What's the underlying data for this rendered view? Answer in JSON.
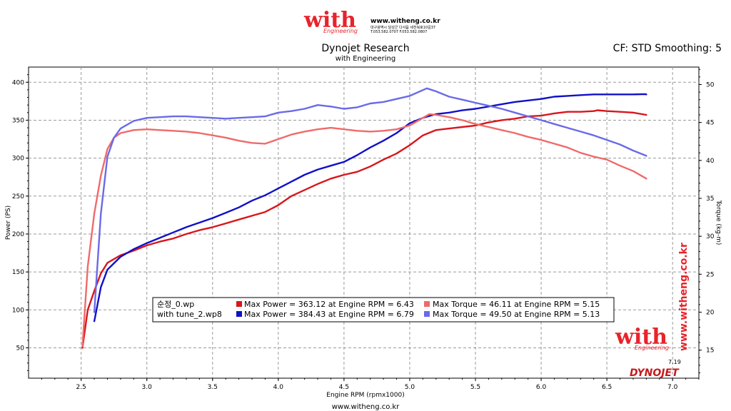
{
  "header": {
    "title": "Dynojet Research",
    "subtitle": "with Engineering",
    "cf_text": "CF: STD Smoothing: 5",
    "logo_word": "with",
    "logo_sub": "Engineering",
    "logo_url": "www.witheng.co.kr",
    "logo_addr": "대구광역시 달성군 다사읍 세천북로10길37",
    "logo_phone": "T.053.582.0707 F.053.582.0807"
  },
  "footer": {
    "url": "www.witheng.co.kr"
  },
  "watermark": {
    "vertical_url": "www.witheng.co.kr",
    "logo_word": "with",
    "logo_sub": "Engineering",
    "dyno_brand": "DYNOJET",
    "version": "7.19"
  },
  "colors": {
    "power_1": "#d8161b",
    "torque_1": "#f06a6a",
    "power_2": "#1010c8",
    "torque_2": "#6a6ae8",
    "plot_bg": "#ffffff",
    "grid": "#9a9a9a",
    "brand_red": "#e8232b"
  },
  "chart_data": {
    "type": "line",
    "title": "Dynojet Research",
    "subtitle": "with Engineering",
    "xlabel": "Engine RPM (rpmx1000)",
    "ylabel_left": "Power (PS)",
    "ylabel_right": "Torque (kg-m)",
    "xlim": [
      2.1,
      7.2
    ],
    "ylim_left": [
      10,
      420
    ],
    "ylim_right": [
      11.3,
      52.3
    ],
    "x_ticks": [
      "2.5",
      "3.0",
      "3.5",
      "4.0",
      "4.5",
      "5.0",
      "5.5",
      "6.0",
      "6.5",
      "7.0"
    ],
    "y_ticks_left": [
      "50",
      "100",
      "150",
      "200",
      "250",
      "300",
      "350",
      "400"
    ],
    "y_ticks_right": [
      "15",
      "20",
      "25",
      "30",
      "35",
      "40",
      "45",
      "50"
    ],
    "grid": true,
    "legend_position": "bottom-center",
    "legend": [
      {
        "file": "순정_0.wp",
        "power_text": "Max Power = 363.12 at Engine RPM = 6.43",
        "torque_text": "Max Torque = 46.11 at Engine RPM = 5.15"
      },
      {
        "file": "with tune_2.wp8",
        "power_text": "Max Power = 384.43 at Engine RPM = 6.79",
        "torque_text": "Max Torque = 49.50 at Engine RPM = 5.13"
      }
    ],
    "series": [
      {
        "name": "순정_0.wp Power",
        "axis": "left",
        "color": "#d8161b",
        "points": [
          [
            2.51,
            50
          ],
          [
            2.55,
            100
          ],
          [
            2.6,
            125
          ],
          [
            2.65,
            148
          ],
          [
            2.7,
            162
          ],
          [
            2.8,
            172
          ],
          [
            2.9,
            178
          ],
          [
            3.0,
            185
          ],
          [
            3.1,
            190
          ],
          [
            3.2,
            194
          ],
          [
            3.3,
            200
          ],
          [
            3.4,
            205
          ],
          [
            3.5,
            209
          ],
          [
            3.6,
            214
          ],
          [
            3.7,
            219
          ],
          [
            3.8,
            224
          ],
          [
            3.9,
            229
          ],
          [
            4.0,
            238
          ],
          [
            4.1,
            250
          ],
          [
            4.2,
            258
          ],
          [
            4.3,
            266
          ],
          [
            4.4,
            273
          ],
          [
            4.5,
            278
          ],
          [
            4.6,
            282
          ],
          [
            4.7,
            289
          ],
          [
            4.8,
            298
          ],
          [
            4.9,
            306
          ],
          [
            5.0,
            317
          ],
          [
            5.1,
            330
          ],
          [
            5.2,
            337
          ],
          [
            5.3,
            339
          ],
          [
            5.4,
            341
          ],
          [
            5.5,
            343
          ],
          [
            5.6,
            347
          ],
          [
            5.7,
            350
          ],
          [
            5.8,
            352
          ],
          [
            5.9,
            355
          ],
          [
            6.0,
            356
          ],
          [
            6.1,
            359
          ],
          [
            6.2,
            361
          ],
          [
            6.3,
            361
          ],
          [
            6.4,
            362
          ],
          [
            6.43,
            363.1
          ],
          [
            6.5,
            362
          ],
          [
            6.6,
            361
          ],
          [
            6.7,
            360
          ],
          [
            6.8,
            357
          ]
        ]
      },
      {
        "name": "with tune_2.wp8 Power",
        "axis": "left",
        "color": "#1010c8",
        "points": [
          [
            2.6,
            85
          ],
          [
            2.65,
            130
          ],
          [
            2.7,
            153
          ],
          [
            2.8,
            170
          ],
          [
            2.9,
            180
          ],
          [
            3.0,
            188
          ],
          [
            3.1,
            195
          ],
          [
            3.2,
            202
          ],
          [
            3.3,
            209
          ],
          [
            3.4,
            215
          ],
          [
            3.5,
            221
          ],
          [
            3.6,
            228
          ],
          [
            3.7,
            235
          ],
          [
            3.8,
            244
          ],
          [
            3.9,
            251
          ],
          [
            4.0,
            260
          ],
          [
            4.1,
            269
          ],
          [
            4.2,
            278
          ],
          [
            4.3,
            285
          ],
          [
            4.4,
            290
          ],
          [
            4.5,
            295
          ],
          [
            4.6,
            304
          ],
          [
            4.7,
            314
          ],
          [
            4.8,
            323
          ],
          [
            4.9,
            333
          ],
          [
            5.0,
            346
          ],
          [
            5.1,
            353
          ],
          [
            5.2,
            358
          ],
          [
            5.3,
            360
          ],
          [
            5.4,
            363
          ],
          [
            5.5,
            365
          ],
          [
            5.6,
            368
          ],
          [
            5.7,
            371
          ],
          [
            5.8,
            374
          ],
          [
            5.9,
            376
          ],
          [
            6.0,
            378
          ],
          [
            6.1,
            381
          ],
          [
            6.2,
            382
          ],
          [
            6.3,
            383
          ],
          [
            6.4,
            384
          ],
          [
            6.5,
            384
          ],
          [
            6.6,
            384
          ],
          [
            6.7,
            384
          ],
          [
            6.79,
            384.4
          ],
          [
            6.8,
            384
          ]
        ]
      },
      {
        "name": "순정_0.wp Torque",
        "axis": "right",
        "color": "#f06a6a",
        "points": [
          [
            2.51,
            15.5
          ],
          [
            2.55,
            26
          ],
          [
            2.6,
            33
          ],
          [
            2.65,
            38
          ],
          [
            2.7,
            41.5
          ],
          [
            2.75,
            43
          ],
          [
            2.8,
            43.6
          ],
          [
            2.9,
            44.0
          ],
          [
            3.0,
            44.1
          ],
          [
            3.1,
            44.0
          ],
          [
            3.2,
            43.9
          ],
          [
            3.3,
            43.8
          ],
          [
            3.4,
            43.6
          ],
          [
            3.5,
            43.3
          ],
          [
            3.6,
            43.0
          ],
          [
            3.7,
            42.6
          ],
          [
            3.8,
            42.3
          ],
          [
            3.9,
            42.2
          ],
          [
            4.0,
            42.8
          ],
          [
            4.1,
            43.4
          ],
          [
            4.2,
            43.8
          ],
          [
            4.3,
            44.1
          ],
          [
            4.4,
            44.3
          ],
          [
            4.5,
            44.1
          ],
          [
            4.6,
            43.9
          ],
          [
            4.7,
            43.8
          ],
          [
            4.8,
            43.9
          ],
          [
            4.9,
            44.1
          ],
          [
            5.0,
            44.6
          ],
          [
            5.1,
            45.6
          ],
          [
            5.15,
            46.1
          ],
          [
            5.2,
            46.0
          ],
          [
            5.3,
            45.7
          ],
          [
            5.4,
            45.3
          ],
          [
            5.5,
            44.8
          ],
          [
            5.6,
            44.4
          ],
          [
            5.7,
            44.0
          ],
          [
            5.8,
            43.6
          ],
          [
            5.9,
            43.1
          ],
          [
            6.0,
            42.7
          ],
          [
            6.1,
            42.2
          ],
          [
            6.2,
            41.7
          ],
          [
            6.3,
            41.0
          ],
          [
            6.4,
            40.5
          ],
          [
            6.5,
            40.1
          ],
          [
            6.6,
            39.3
          ],
          [
            6.7,
            38.6
          ],
          [
            6.8,
            37.6
          ]
        ]
      },
      {
        "name": "with tune_2.wp8 Torque",
        "axis": "right",
        "color": "#6a6ae8",
        "points": [
          [
            2.6,
            20
          ],
          [
            2.65,
            33
          ],
          [
            2.7,
            40.5
          ],
          [
            2.75,
            43
          ],
          [
            2.8,
            44.2
          ],
          [
            2.9,
            45.2
          ],
          [
            3.0,
            45.6
          ],
          [
            3.1,
            45.7
          ],
          [
            3.2,
            45.8
          ],
          [
            3.3,
            45.8
          ],
          [
            3.4,
            45.7
          ],
          [
            3.5,
            45.6
          ],
          [
            3.6,
            45.5
          ],
          [
            3.7,
            45.6
          ],
          [
            3.8,
            45.7
          ],
          [
            3.9,
            45.8
          ],
          [
            4.0,
            46.3
          ],
          [
            4.1,
            46.5
          ],
          [
            4.2,
            46.8
          ],
          [
            4.3,
            47.3
          ],
          [
            4.4,
            47.1
          ],
          [
            4.5,
            46.8
          ],
          [
            4.6,
            47.0
          ],
          [
            4.7,
            47.5
          ],
          [
            4.8,
            47.7
          ],
          [
            4.9,
            48.1
          ],
          [
            5.0,
            48.5
          ],
          [
            5.13,
            49.5
          ],
          [
            5.2,
            49.1
          ],
          [
            5.3,
            48.4
          ],
          [
            5.4,
            48.0
          ],
          [
            5.5,
            47.6
          ],
          [
            5.6,
            47.2
          ],
          [
            5.7,
            46.8
          ],
          [
            5.8,
            46.3
          ],
          [
            5.9,
            45.8
          ],
          [
            6.0,
            45.3
          ],
          [
            6.1,
            44.8
          ],
          [
            6.2,
            44.3
          ],
          [
            6.3,
            43.8
          ],
          [
            6.4,
            43.3
          ],
          [
            6.5,
            42.7
          ],
          [
            6.6,
            42.1
          ],
          [
            6.7,
            41.3
          ],
          [
            6.8,
            40.6
          ]
        ]
      }
    ]
  }
}
